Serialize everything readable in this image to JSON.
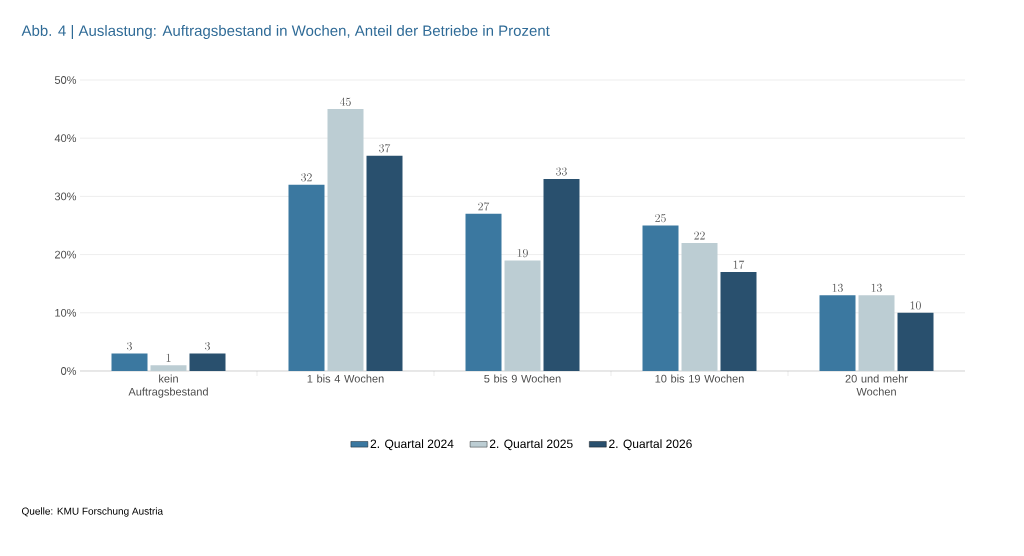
{
  "chart_data": {
    "type": "bar",
    "title": "Abb. 4 |   Auslastung: Auftragsbestand in Wochen, Anteil der Betriebe in Prozent",
    "categories": [
      "kein Auftragsbestand",
      "1 bis 4 Wochen",
      "5 bis 9 Wochen",
      "10 bis 19 Wochen",
      "20 und mehr Wochen"
    ],
    "series": [
      {
        "name": "2. Quartal 2024",
        "color": "#3b78a0",
        "values": [
          3,
          32,
          27,
          25,
          13
        ]
      },
      {
        "name": "2. Quartal 2025",
        "color": "#bccdd3",
        "values": [
          1,
          45,
          19,
          22,
          13
        ]
      },
      {
        "name": "2. Quartal 2026",
        "color": "#29506e",
        "values": [
          3,
          37,
          33,
          17,
          10
        ]
      }
    ],
    "ylim": [
      0,
      50
    ],
    "yticks": [
      {
        "value": 0,
        "label": "0%"
      },
      {
        "value": 10,
        "label": "10%"
      },
      {
        "value": 20,
        "label": "20%"
      },
      {
        "value": 30,
        "label": "30%"
      },
      {
        "value": 40,
        "label": "40%"
      },
      {
        "value": 50,
        "label": "50%"
      }
    ],
    "grid": "y",
    "legend": "bottom",
    "data_labels": true,
    "annotations": [
      "Quelle: KMU Forschung Austria"
    ]
  }
}
